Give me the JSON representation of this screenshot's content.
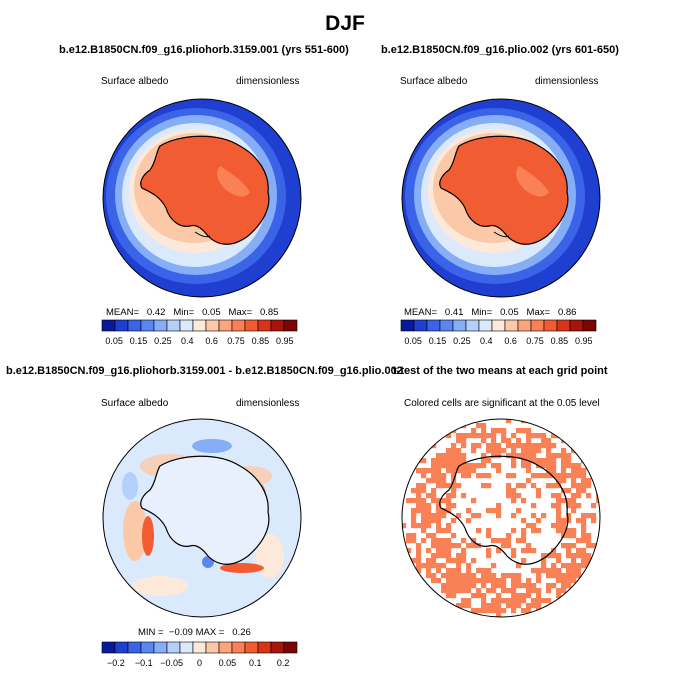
{
  "figure_title": "DJF",
  "panels": [
    {
      "title": "b.e12.B1850CN.f09_g16.pliohorb.3159.001 (yrs 551-600)",
      "left_label": "Surface albedo",
      "right_label": "dimensionless",
      "stats": {
        "mean_label": "MEAN=",
        "mean": "0.42",
        "min_label": "Min=",
        "min": "0.05",
        "max_label": "Max=",
        "max": "0.85"
      }
    },
    {
      "title": "b.e12.B1850CN.f09_g16.plio.002 (yrs 601-650)",
      "left_label": "Surface albedo",
      "right_label": "dimensionless",
      "stats": {
        "mean_label": "MEAN=",
        "mean": "0.41",
        "min_label": "Min=",
        "min": "0.05",
        "max_label": "Max=",
        "max": "0.86"
      }
    },
    {
      "title": "b.e12.B1850CN.f09_g16.pliohorb.3159.001 - b.e12.B1850CN.f09_g16.plio.002",
      "left_label": "Surface albedo",
      "right_label": "dimensionless",
      "stats": {
        "min_label": "MIN =",
        "min": "−0.09",
        "max_label": "MAX =",
        "max": "0.26"
      }
    },
    {
      "title": "t-test of the two means at each grid point",
      "subtitle": "Colored cells are significant at the 0.05 level"
    }
  ],
  "colorbar_abs": {
    "colors": [
      "#08199c",
      "#1f3fd1",
      "#3b63e8",
      "#5a86f0",
      "#86aef6",
      "#b3cffa",
      "#dbe9fd",
      "#fde9d9",
      "#fcc9a8",
      "#fba57c",
      "#f98155",
      "#f25c33",
      "#d9341a",
      "#a8140c",
      "#7a0606"
    ],
    "labels": [
      "0.05",
      "0.15",
      "0.25",
      "0.4",
      "0.6",
      "0.75",
      "0.85",
      "0.95"
    ]
  },
  "colorbar_diff": {
    "colors": [
      "#08199c",
      "#1f3fd1",
      "#3b63e8",
      "#5a86f0",
      "#86aef6",
      "#b3cffa",
      "#dbe9fd",
      "#fde9d9",
      "#fcc9a8",
      "#fba57c",
      "#f98155",
      "#f25c33",
      "#d9341a",
      "#a8140c",
      "#7a0606"
    ],
    "labels": [
      "−0.2",
      "−0.1",
      "−0.05",
      "0",
      "0.05",
      "0.1",
      "0.2"
    ]
  },
  "colors": {
    "significant": "#f98155",
    "land_high": "#f25c33",
    "ocean_low": "#1f3fd1",
    "diff_background": "#dbe9fd"
  }
}
